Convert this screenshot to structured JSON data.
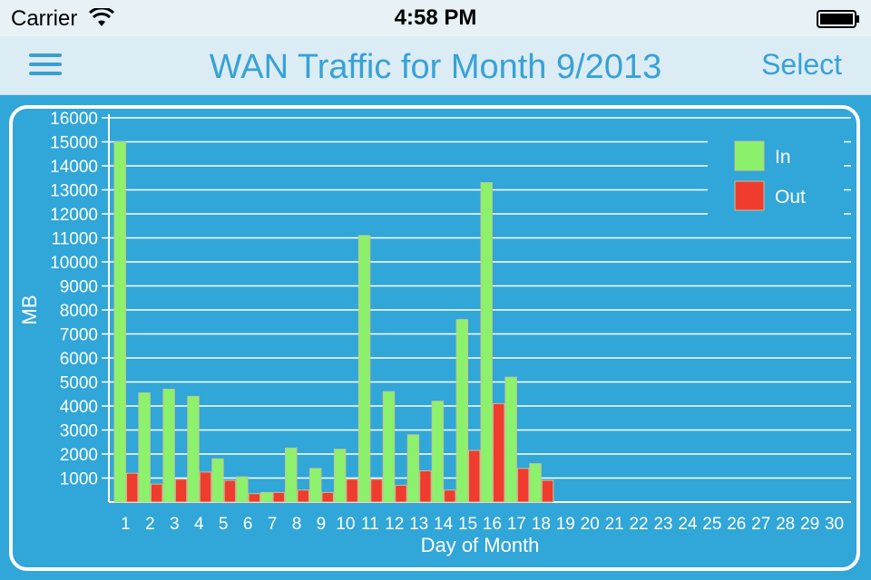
{
  "status_bar": {
    "carrier": "Carrier",
    "time": "4:58 PM"
  },
  "nav": {
    "title": "WAN Traffic for Month 9/2013",
    "select_label": "Select",
    "menu_icon": "menu-icon"
  },
  "colors": {
    "in": "#8cf26c",
    "out": "#f03b2f",
    "background": "#31a6d8",
    "accent": "#37a2d6"
  },
  "chart_data": {
    "type": "bar",
    "xlabel": "Day of Month",
    "ylabel": "MB",
    "ylim": [
      0,
      16000
    ],
    "yticks": [
      1000,
      2000,
      3000,
      4000,
      5000,
      6000,
      7000,
      8000,
      9000,
      10000,
      11000,
      12000,
      13000,
      14000,
      15000,
      16000
    ],
    "grid": "horizontal",
    "legend_position": "top-right",
    "categories": [
      "1",
      "2",
      "3",
      "4",
      "5",
      "6",
      "7",
      "8",
      "9",
      "10",
      "11",
      "12",
      "13",
      "14",
      "15",
      "16",
      "17",
      "18",
      "19",
      "20",
      "21",
      "22",
      "23",
      "24",
      "25",
      "26",
      "27",
      "28",
      "29",
      "30"
    ],
    "series": [
      {
        "name": "In",
        "values": [
          15000,
          4550,
          4700,
          4400,
          1800,
          1050,
          400,
          2250,
          1400,
          2200,
          11100,
          4600,
          2800,
          4200,
          7600,
          13300,
          5200,
          1600,
          0,
          0,
          0,
          0,
          0,
          0,
          0,
          0,
          0,
          0,
          0,
          0
        ]
      },
      {
        "name": "Out",
        "values": [
          1200,
          750,
          950,
          1250,
          900,
          350,
          400,
          500,
          400,
          950,
          950,
          700,
          1300,
          500,
          2150,
          4100,
          1400,
          900,
          0,
          0,
          0,
          0,
          0,
          0,
          0,
          0,
          0,
          0,
          0,
          0
        ]
      }
    ]
  }
}
